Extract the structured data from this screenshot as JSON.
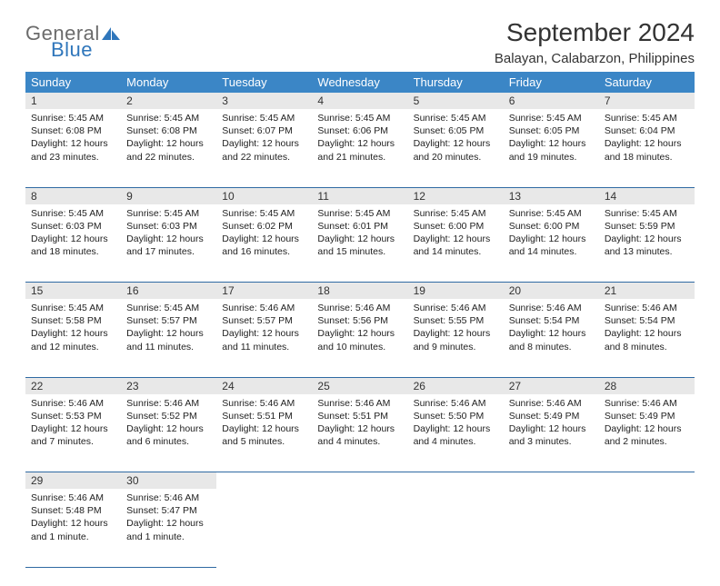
{
  "logo": {
    "general": "General",
    "blue": "Blue"
  },
  "title": "September 2024",
  "location": "Balayan, Calabarzon, Philippines",
  "colors": {
    "header_bg": "#3b86c6",
    "header_text": "#ffffff",
    "daynum_bg": "#e8e8e8",
    "rule": "#2f6aa3",
    "logo_gray": "#6b6b6b",
    "logo_blue": "#2f76bb"
  },
  "weekdays": [
    "Sunday",
    "Monday",
    "Tuesday",
    "Wednesday",
    "Thursday",
    "Friday",
    "Saturday"
  ],
  "weeks": [
    [
      {
        "n": "1",
        "sr": "5:45 AM",
        "ss": "6:08 PM",
        "dl": "12 hours and 23 minutes."
      },
      {
        "n": "2",
        "sr": "5:45 AM",
        "ss": "6:08 PM",
        "dl": "12 hours and 22 minutes."
      },
      {
        "n": "3",
        "sr": "5:45 AM",
        "ss": "6:07 PM",
        "dl": "12 hours and 22 minutes."
      },
      {
        "n": "4",
        "sr": "5:45 AM",
        "ss": "6:06 PM",
        "dl": "12 hours and 21 minutes."
      },
      {
        "n": "5",
        "sr": "5:45 AM",
        "ss": "6:05 PM",
        "dl": "12 hours and 20 minutes."
      },
      {
        "n": "6",
        "sr": "5:45 AM",
        "ss": "6:05 PM",
        "dl": "12 hours and 19 minutes."
      },
      {
        "n": "7",
        "sr": "5:45 AM",
        "ss": "6:04 PM",
        "dl": "12 hours and 18 minutes."
      }
    ],
    [
      {
        "n": "8",
        "sr": "5:45 AM",
        "ss": "6:03 PM",
        "dl": "12 hours and 18 minutes."
      },
      {
        "n": "9",
        "sr": "5:45 AM",
        "ss": "6:03 PM",
        "dl": "12 hours and 17 minutes."
      },
      {
        "n": "10",
        "sr": "5:45 AM",
        "ss": "6:02 PM",
        "dl": "12 hours and 16 minutes."
      },
      {
        "n": "11",
        "sr": "5:45 AM",
        "ss": "6:01 PM",
        "dl": "12 hours and 15 minutes."
      },
      {
        "n": "12",
        "sr": "5:45 AM",
        "ss": "6:00 PM",
        "dl": "12 hours and 14 minutes."
      },
      {
        "n": "13",
        "sr": "5:45 AM",
        "ss": "6:00 PM",
        "dl": "12 hours and 14 minutes."
      },
      {
        "n": "14",
        "sr": "5:45 AM",
        "ss": "5:59 PM",
        "dl": "12 hours and 13 minutes."
      }
    ],
    [
      {
        "n": "15",
        "sr": "5:45 AM",
        "ss": "5:58 PM",
        "dl": "12 hours and 12 minutes."
      },
      {
        "n": "16",
        "sr": "5:45 AM",
        "ss": "5:57 PM",
        "dl": "12 hours and 11 minutes."
      },
      {
        "n": "17",
        "sr": "5:46 AM",
        "ss": "5:57 PM",
        "dl": "12 hours and 11 minutes."
      },
      {
        "n": "18",
        "sr": "5:46 AM",
        "ss": "5:56 PM",
        "dl": "12 hours and 10 minutes."
      },
      {
        "n": "19",
        "sr": "5:46 AM",
        "ss": "5:55 PM",
        "dl": "12 hours and 9 minutes."
      },
      {
        "n": "20",
        "sr": "5:46 AM",
        "ss": "5:54 PM",
        "dl": "12 hours and 8 minutes."
      },
      {
        "n": "21",
        "sr": "5:46 AM",
        "ss": "5:54 PM",
        "dl": "12 hours and 8 minutes."
      }
    ],
    [
      {
        "n": "22",
        "sr": "5:46 AM",
        "ss": "5:53 PM",
        "dl": "12 hours and 7 minutes."
      },
      {
        "n": "23",
        "sr": "5:46 AM",
        "ss": "5:52 PM",
        "dl": "12 hours and 6 minutes."
      },
      {
        "n": "24",
        "sr": "5:46 AM",
        "ss": "5:51 PM",
        "dl": "12 hours and 5 minutes."
      },
      {
        "n": "25",
        "sr": "5:46 AM",
        "ss": "5:51 PM",
        "dl": "12 hours and 4 minutes."
      },
      {
        "n": "26",
        "sr": "5:46 AM",
        "ss": "5:50 PM",
        "dl": "12 hours and 4 minutes."
      },
      {
        "n": "27",
        "sr": "5:46 AM",
        "ss": "5:49 PM",
        "dl": "12 hours and 3 minutes."
      },
      {
        "n": "28",
        "sr": "5:46 AM",
        "ss": "5:49 PM",
        "dl": "12 hours and 2 minutes."
      }
    ],
    [
      {
        "n": "29",
        "sr": "5:46 AM",
        "ss": "5:48 PM",
        "dl": "12 hours and 1 minute."
      },
      {
        "n": "30",
        "sr": "5:46 AM",
        "ss": "5:47 PM",
        "dl": "12 hours and 1 minute."
      },
      null,
      null,
      null,
      null,
      null
    ]
  ],
  "labels": {
    "sunrise": "Sunrise:",
    "sunset": "Sunset:",
    "daylight": "Daylight:"
  }
}
